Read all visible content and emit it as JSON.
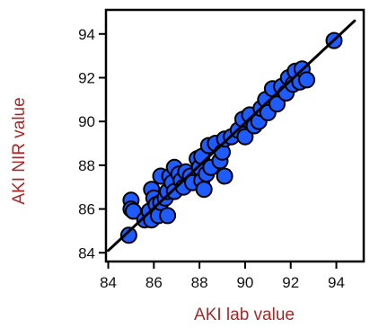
{
  "chart_data": {
    "type": "scatter",
    "title": "",
    "xlabel": "AKI lab value",
    "ylabel": "AKI NIR value",
    "xlim": [
      83.9,
      95.2
    ],
    "ylim": [
      83.6,
      95.1
    ],
    "xticks": [
      84,
      86,
      88,
      90,
      92,
      94
    ],
    "yticks": [
      84,
      86,
      88,
      90,
      92,
      94
    ],
    "grid": false,
    "legend": "none",
    "colors": {
      "marker_fill": "#1f5cff",
      "marker_edge": "#000000",
      "axis_title": "#a52a2a",
      "fit_line": "#000000"
    },
    "fit_line": {
      "x": [
        84,
        94.8
      ],
      "y": [
        84.1,
        94.6
      ]
    },
    "points": [
      [
        84.9,
        84.8
      ],
      [
        85.0,
        86.4
      ],
      [
        85.0,
        86.0
      ],
      [
        85.1,
        85.9
      ],
      [
        85.6,
        85.5
      ],
      [
        85.8,
        85.9
      ],
      [
        85.9,
        86.9
      ],
      [
        85.9,
        85.5
      ],
      [
        86.0,
        86.5
      ],
      [
        86.1,
        86.2
      ],
      [
        86.2,
        85.7
      ],
      [
        86.3,
        87.5
      ],
      [
        86.3,
        86.3
      ],
      [
        86.5,
        86.5
      ],
      [
        86.6,
        85.7
      ],
      [
        86.6,
        86.8
      ],
      [
        86.7,
        87.5
      ],
      [
        86.8,
        87.2
      ],
      [
        86.9,
        87.9
      ],
      [
        86.9,
        86.8
      ],
      [
        87.1,
        87.6
      ],
      [
        87.2,
        87.3
      ],
      [
        87.3,
        87.0
      ],
      [
        87.4,
        87.7
      ],
      [
        87.6,
        87.5
      ],
      [
        87.7,
        87.2
      ],
      [
        87.9,
        88.3
      ],
      [
        88.0,
        87.9
      ],
      [
        88.1,
        87.3
      ],
      [
        88.1,
        88.4
      ],
      [
        88.2,
        86.9
      ],
      [
        88.3,
        87.6
      ],
      [
        88.4,
        88.9
      ],
      [
        88.5,
        87.9
      ],
      [
        88.7,
        89.0
      ],
      [
        88.9,
        88.2
      ],
      [
        89.0,
        88.6
      ],
      [
        89.1,
        89.2
      ],
      [
        89.1,
        87.5
      ],
      [
        89.4,
        89.3
      ],
      [
        89.7,
        89.6
      ],
      [
        89.9,
        90.1
      ],
      [
        90.0,
        89.3
      ],
      [
        90.2,
        90.3
      ],
      [
        90.4,
        89.8
      ],
      [
        90.6,
        90.0
      ],
      [
        90.7,
        90.6
      ],
      [
        90.9,
        91.0
      ],
      [
        91.0,
        90.4
      ],
      [
        91.2,
        91.5
      ],
      [
        91.4,
        90.8
      ],
      [
        91.6,
        91.6
      ],
      [
        91.8,
        91.3
      ],
      [
        91.9,
        92.0
      ],
      [
        92.1,
        91.7
      ],
      [
        92.2,
        92.3
      ],
      [
        92.4,
        91.8
      ],
      [
        92.5,
        92.4
      ],
      [
        92.7,
        91.9
      ],
      [
        93.9,
        93.7
      ]
    ]
  }
}
